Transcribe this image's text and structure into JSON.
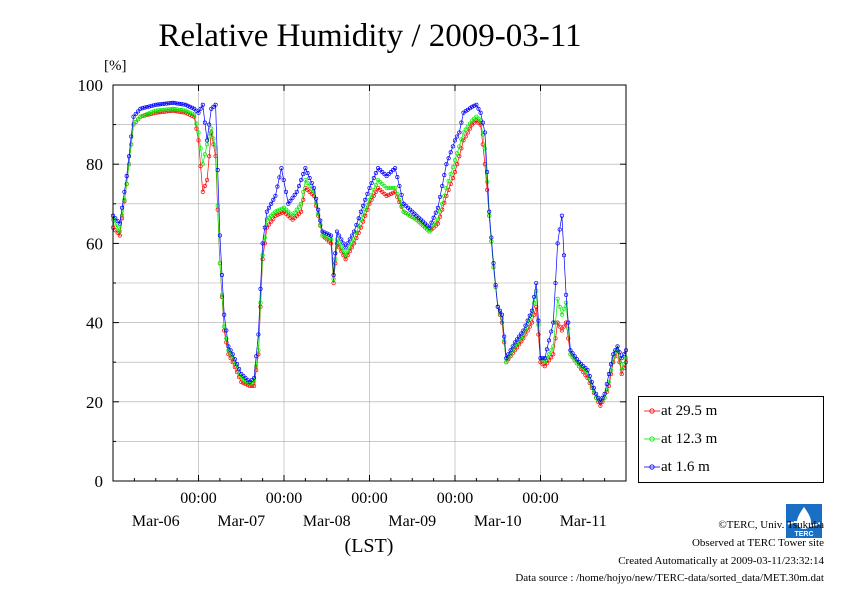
{
  "colors": {
    "s1": "#ff0000",
    "s2": "#00ee00",
    "s3": "#0000ff",
    "grid": "#aaaaaa",
    "logo": "#1a6fc4"
  },
  "footer": {
    "credit": "©TERC, Univ. Tsukuba",
    "observed": "Observed at TERC Tower site",
    "created": "Created Automatically at 2009-03-11/23:32:14",
    "source": "Data source : /home/hojyo/new/TERC-data/sorted_data/MET.30m.dat"
  },
  "logo_text": "TERC",
  "chart_data": {
    "type": "line",
    "title": "Relative Humidity / 2009-03-11",
    "ylabel": "[%]",
    "xlabel": "(LST)",
    "ylim": [
      0,
      100
    ],
    "yticks": [
      0,
      20,
      40,
      60,
      80,
      100
    ],
    "xlim": [
      0,
      6
    ],
    "time_ticks": [
      "00:00",
      "00:00",
      "00:00",
      "00:00",
      "00:00"
    ],
    "date_labels": [
      "Mar-06",
      "Mar-07",
      "Mar-08",
      "Mar-09",
      "Mar-10",
      "Mar-11"
    ],
    "grid": true,
    "legend_position": "right",
    "series": [
      {
        "name": "at 29.5 m",
        "color": "#ff0000",
        "points": [
          [
            0,
            64
          ],
          [
            0.08,
            62
          ],
          [
            0.16,
            75
          ],
          [
            0.24,
            90
          ],
          [
            0.32,
            92
          ],
          [
            0.5,
            93
          ],
          [
            0.7,
            93.5
          ],
          [
            0.85,
            93
          ],
          [
            0.95,
            92
          ],
          [
            1.0,
            86
          ],
          [
            1.05,
            73
          ],
          [
            1.1,
            76
          ],
          [
            1.15,
            88
          ],
          [
            1.2,
            82
          ],
          [
            1.25,
            55
          ],
          [
            1.3,
            38
          ],
          [
            1.35,
            32
          ],
          [
            1.4,
            30
          ],
          [
            1.5,
            25
          ],
          [
            1.6,
            24
          ],
          [
            1.65,
            24
          ],
          [
            1.7,
            32
          ],
          [
            1.75,
            56
          ],
          [
            1.8,
            64
          ],
          [
            1.9,
            67
          ],
          [
            2.0,
            68
          ],
          [
            2.1,
            66
          ],
          [
            2.2,
            68
          ],
          [
            2.25,
            74
          ],
          [
            2.35,
            72
          ],
          [
            2.45,
            62
          ],
          [
            2.55,
            60
          ],
          [
            2.58,
            50
          ],
          [
            2.62,
            60
          ],
          [
            2.72,
            56
          ],
          [
            2.82,
            60
          ],
          [
            2.9,
            64
          ],
          [
            3.0,
            70
          ],
          [
            3.1,
            74
          ],
          [
            3.2,
            72
          ],
          [
            3.3,
            73
          ],
          [
            3.4,
            68
          ],
          [
            3.55,
            66
          ],
          [
            3.7,
            63
          ],
          [
            3.8,
            65
          ],
          [
            3.9,
            72
          ],
          [
            4.0,
            78
          ],
          [
            4.1,
            86
          ],
          [
            4.2,
            90
          ],
          [
            4.25,
            91
          ],
          [
            4.3,
            90
          ],
          [
            4.35,
            80
          ],
          [
            4.4,
            67
          ],
          [
            4.45,
            54
          ],
          [
            4.5,
            44
          ],
          [
            4.55,
            40
          ],
          [
            4.6,
            30
          ],
          [
            4.7,
            33
          ],
          [
            4.8,
            36
          ],
          [
            4.9,
            40
          ],
          [
            4.95,
            44
          ],
          [
            5.0,
            30
          ],
          [
            5.05,
            29
          ],
          [
            5.15,
            32
          ],
          [
            5.2,
            40
          ],
          [
            5.25,
            38
          ],
          [
            5.3,
            40
          ],
          [
            5.35,
            32
          ],
          [
            5.45,
            29
          ],
          [
            5.55,
            26
          ],
          [
            5.65,
            21
          ],
          [
            5.7,
            19
          ],
          [
            5.75,
            21
          ],
          [
            5.8,
            24
          ],
          [
            5.85,
            30
          ],
          [
            5.9,
            33
          ],
          [
            5.95,
            27
          ],
          [
            6.0,
            30
          ]
        ]
      },
      {
        "name": "at 12.3 m",
        "color": "#00ee00",
        "points": [
          [
            0,
            66
          ],
          [
            0.08,
            63
          ],
          [
            0.16,
            75
          ],
          [
            0.24,
            90
          ],
          [
            0.32,
            92
          ],
          [
            0.5,
            93.5
          ],
          [
            0.7,
            94
          ],
          [
            0.85,
            93.5
          ],
          [
            0.95,
            92.5
          ],
          [
            1.0,
            88
          ],
          [
            1.05,
            80
          ],
          [
            1.1,
            85
          ],
          [
            1.15,
            89
          ],
          [
            1.2,
            84
          ],
          [
            1.25,
            55
          ],
          [
            1.3,
            39
          ],
          [
            1.35,
            33
          ],
          [
            1.4,
            31
          ],
          [
            1.5,
            26
          ],
          [
            1.6,
            24.5
          ],
          [
            1.65,
            25
          ],
          [
            1.7,
            33
          ],
          [
            1.75,
            57
          ],
          [
            1.8,
            66
          ],
          [
            1.9,
            68
          ],
          [
            2.0,
            69
          ],
          [
            2.1,
            67
          ],
          [
            2.2,
            70
          ],
          [
            2.25,
            76
          ],
          [
            2.35,
            73
          ],
          [
            2.45,
            62
          ],
          [
            2.55,
            61
          ],
          [
            2.58,
            51
          ],
          [
            2.62,
            61
          ],
          [
            2.72,
            57
          ],
          [
            2.82,
            61
          ],
          [
            2.9,
            66
          ],
          [
            3.0,
            71
          ],
          [
            3.1,
            76
          ],
          [
            3.2,
            74
          ],
          [
            3.3,
            74
          ],
          [
            3.4,
            68
          ],
          [
            3.55,
            66
          ],
          [
            3.7,
            63
          ],
          [
            3.8,
            66
          ],
          [
            3.9,
            74
          ],
          [
            4.0,
            81
          ],
          [
            4.1,
            88
          ],
          [
            4.2,
            91
          ],
          [
            4.25,
            92
          ],
          [
            4.3,
            91
          ],
          [
            4.35,
            84
          ],
          [
            4.4,
            67
          ],
          [
            4.45,
            54
          ],
          [
            4.5,
            44
          ],
          [
            4.55,
            41
          ],
          [
            4.6,
            30
          ],
          [
            4.7,
            34
          ],
          [
            4.8,
            37
          ],
          [
            4.9,
            42
          ],
          [
            4.95,
            48
          ],
          [
            5.0,
            31
          ],
          [
            5.05,
            30
          ],
          [
            5.15,
            34
          ],
          [
            5.2,
            46
          ],
          [
            5.25,
            42
          ],
          [
            5.3,
            45
          ],
          [
            5.35,
            32
          ],
          [
            5.45,
            29
          ],
          [
            5.55,
            27
          ],
          [
            5.65,
            21
          ],
          [
            5.7,
            20
          ],
          [
            5.75,
            21
          ],
          [
            5.8,
            25
          ],
          [
            5.85,
            31
          ],
          [
            5.9,
            34
          ],
          [
            5.95,
            28
          ],
          [
            6.0,
            31
          ]
        ]
      },
      {
        "name": "at 1.6 m",
        "color": "#0000ff",
        "points": [
          [
            0,
            67
          ],
          [
            0.08,
            65
          ],
          [
            0.16,
            77
          ],
          [
            0.24,
            92
          ],
          [
            0.32,
            94
          ],
          [
            0.5,
            95
          ],
          [
            0.7,
            95.5
          ],
          [
            0.85,
            95
          ],
          [
            0.95,
            94
          ],
          [
            1.0,
            93
          ],
          [
            1.05,
            95
          ],
          [
            1.1,
            86
          ],
          [
            1.15,
            94
          ],
          [
            1.2,
            95
          ],
          [
            1.25,
            62
          ],
          [
            1.3,
            42
          ],
          [
            1.35,
            34
          ],
          [
            1.4,
            32
          ],
          [
            1.5,
            27
          ],
          [
            1.6,
            25
          ],
          [
            1.65,
            26
          ],
          [
            1.7,
            37
          ],
          [
            1.75,
            60
          ],
          [
            1.8,
            68
          ],
          [
            1.9,
            72
          ],
          [
            1.97,
            79
          ],
          [
            2.05,
            70
          ],
          [
            2.15,
            73
          ],
          [
            2.25,
            79
          ],
          [
            2.35,
            74
          ],
          [
            2.45,
            63
          ],
          [
            2.55,
            62
          ],
          [
            2.58,
            52
          ],
          [
            2.62,
            63
          ],
          [
            2.72,
            59
          ],
          [
            2.82,
            63
          ],
          [
            2.9,
            68
          ],
          [
            3.0,
            74
          ],
          [
            3.1,
            79
          ],
          [
            3.2,
            77
          ],
          [
            3.3,
            79
          ],
          [
            3.4,
            70
          ],
          [
            3.55,
            67
          ],
          [
            3.7,
            64
          ],
          [
            3.8,
            69
          ],
          [
            3.9,
            80
          ],
          [
            4.0,
            86
          ],
          [
            4.05,
            88
          ],
          [
            4.1,
            93
          ],
          [
            4.2,
            94.5
          ],
          [
            4.25,
            95
          ],
          [
            4.3,
            93
          ],
          [
            4.35,
            88
          ],
          [
            4.4,
            68
          ],
          [
            4.45,
            55
          ],
          [
            4.5,
            44
          ],
          [
            4.55,
            42
          ],
          [
            4.6,
            31
          ],
          [
            4.7,
            35
          ],
          [
            4.8,
            38
          ],
          [
            4.9,
            43
          ],
          [
            4.95,
            50
          ],
          [
            5.0,
            31
          ],
          [
            5.05,
            31
          ],
          [
            5.15,
            40
          ],
          [
            5.2,
            60
          ],
          [
            5.25,
            67
          ],
          [
            5.3,
            47
          ],
          [
            5.35,
            33
          ],
          [
            5.45,
            30
          ],
          [
            5.55,
            28
          ],
          [
            5.65,
            22
          ],
          [
            5.7,
            20
          ],
          [
            5.75,
            22
          ],
          [
            5.8,
            27
          ],
          [
            5.85,
            32
          ],
          [
            5.9,
            34
          ],
          [
            5.95,
            31
          ],
          [
            6.0,
            33
          ]
        ]
      }
    ]
  }
}
